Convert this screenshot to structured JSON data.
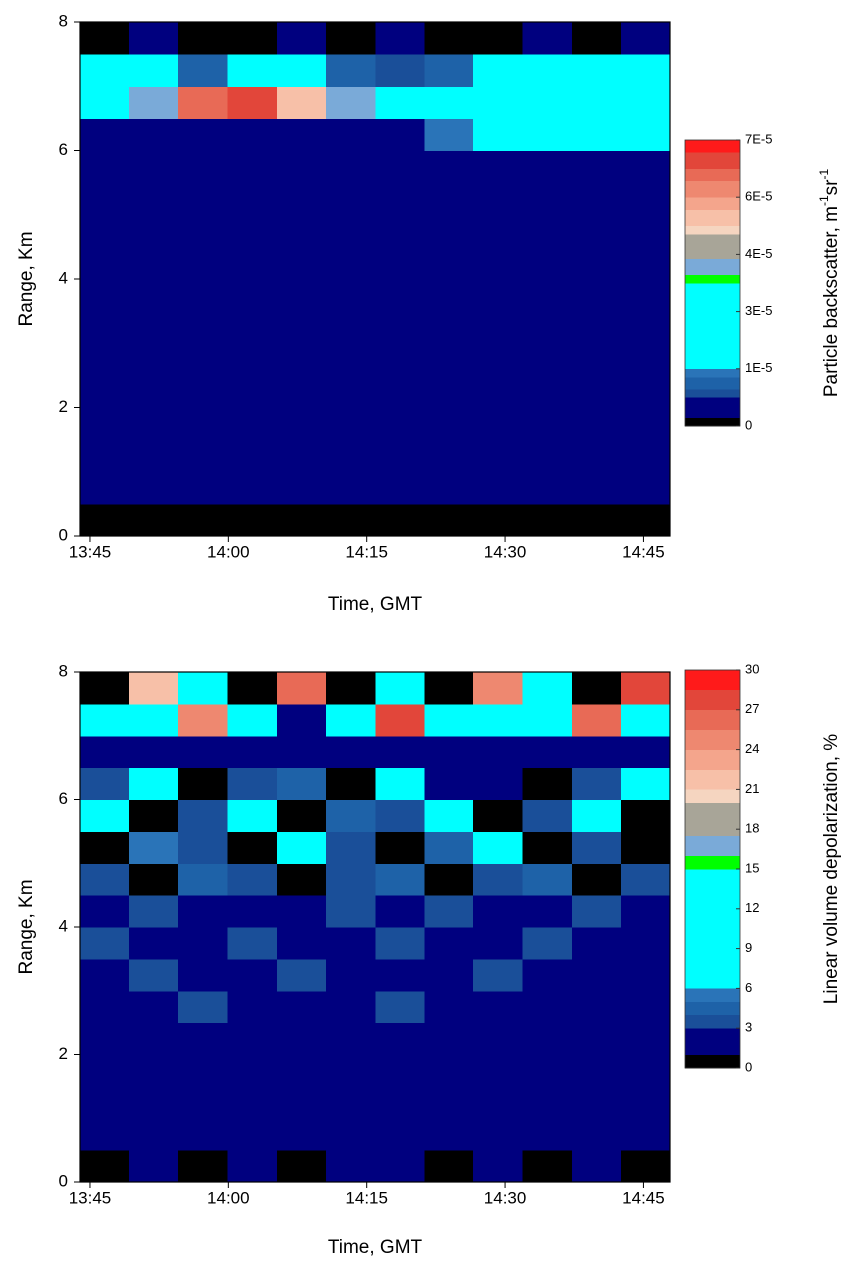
{
  "chart_data": [
    {
      "type": "heatmap",
      "xlabel": "Time, GMT",
      "ylabel": "Range, Km",
      "xlim": [
        13.732,
        14.798
      ],
      "xticks": [
        {
          "value": 13.75,
          "label": "13:45"
        },
        {
          "value": 14,
          "label": "14:00"
        },
        {
          "value": 14.25,
          "label": "14:15"
        },
        {
          "value": 14.5,
          "label": "14:30"
        },
        {
          "value": 14.75,
          "label": "14:45"
        }
      ],
      "ylim": [
        0,
        8
      ],
      "yticks": [
        0,
        2,
        4,
        6,
        8
      ],
      "x": [
        13.776,
        13.865,
        13.954,
        14.043,
        14.132,
        14.221,
        14.31,
        14.398,
        14.487,
        14.576,
        14.665,
        14.754
      ],
      "y": [
        0.25,
        0.75,
        1.25,
        1.75,
        2.25,
        2.75,
        3.25,
        3.75,
        4.25,
        4.75,
        5.25,
        5.75,
        6.25,
        6.75,
        7.25,
        7.75
      ],
      "z": [
        [
          0,
          0,
          0,
          0,
          0,
          0,
          0,
          0,
          0,
          0,
          0,
          0
        ],
        [
          5e-06,
          5e-06,
          5e-06,
          5e-06,
          5e-06,
          5e-06,
          5e-06,
          5e-06,
          5e-06,
          5e-06,
          5e-06,
          5e-06
        ],
        [
          5e-06,
          5e-06,
          5e-06,
          5e-06,
          5e-06,
          5e-06,
          5e-06,
          5e-06,
          5e-06,
          5e-06,
          5e-06,
          5e-06
        ],
        [
          5e-06,
          5e-06,
          5e-06,
          5e-06,
          5e-06,
          5e-06,
          5e-06,
          5e-06,
          5e-06,
          5e-06,
          5e-06,
          5e-06
        ],
        [
          5e-06,
          5e-06,
          5e-06,
          5e-06,
          5e-06,
          5e-06,
          5e-06,
          5e-06,
          5e-06,
          5e-06,
          5e-06,
          5e-06
        ],
        [
          5e-06,
          5e-06,
          5e-06,
          5e-06,
          5e-06,
          5e-06,
          5e-06,
          5e-06,
          5e-06,
          5e-06,
          5e-06,
          5e-06
        ],
        [
          5e-06,
          5e-06,
          5e-06,
          5e-06,
          5e-06,
          5e-06,
          5e-06,
          5e-06,
          5e-06,
          5e-06,
          5e-06,
          5e-06
        ],
        [
          5e-06,
          5e-06,
          5e-06,
          5e-06,
          5e-06,
          5e-06,
          5e-06,
          5e-06,
          5e-06,
          5e-06,
          5e-06,
          5e-06
        ],
        [
          5e-06,
          5e-06,
          5e-06,
          5e-06,
          5e-06,
          5e-06,
          5e-06,
          5e-06,
          5e-06,
          5e-06,
          5e-06,
          5e-06
        ],
        [
          5e-06,
          5e-06,
          5e-06,
          5e-06,
          5e-06,
          5e-06,
          5e-06,
          5e-06,
          5e-06,
          5e-06,
          5e-06,
          5e-06
        ],
        [
          5e-06,
          5e-06,
          5e-06,
          5e-06,
          5e-06,
          5e-06,
          5e-06,
          5e-06,
          5e-06,
          5e-06,
          5e-06,
          5e-06
        ],
        [
          5e-06,
          5e-06,
          5e-06,
          5e-06,
          5e-06,
          5e-06,
          5e-06,
          5e-06,
          5e-06,
          5e-06,
          5e-06,
          5e-06
        ],
        [
          5e-06,
          5e-06,
          5e-06,
          5e-06,
          5e-06,
          5e-06,
          5e-06,
          1.3e-05,
          2e-05,
          2e-05,
          2e-05,
          2e-05
        ],
        [
          3e-05,
          4e-05,
          6.2e-05,
          6.5e-05,
          5e-05,
          4e-05,
          3e-05,
          3e-05,
          2e-05,
          1.5e-05,
          2e-05,
          2.5e-05
        ],
        [
          2e-05,
          2e-05,
          1e-05,
          2e-05,
          2e-05,
          1e-05,
          8e-06,
          1e-05,
          2e-05,
          2e-05,
          1.5e-05,
          2e-05
        ],
        [
          1e-06,
          5e-06,
          1e-06,
          1e-06,
          5e-06,
          1e-06,
          5e-06,
          1e-06,
          1e-06,
          5e-06,
          1e-06,
          5e-06
        ]
      ],
      "levels": [
        0,
        2e-06,
        7e-06,
        9e-06,
        1.2e-05,
        1.4e-05,
        3.5e-05,
        3.7e-05,
        4.1e-05,
        4.7e-05,
        4.9e-05,
        5.3e-05,
        5.6e-05,
        6e-05,
        6.3e-05,
        6.7e-05,
        7e-05
      ],
      "level_colors": [
        "#000000",
        "#00007f",
        "#1a4f99",
        "#1e62a8",
        "#2a74b8",
        "#00ffff",
        "#00ff00",
        "#7aaad8",
        "#a8a598",
        "#f5d5c0",
        "#f7c0a8",
        "#f4a58c",
        "#ee8870",
        "#e86a56",
        "#e2463a",
        "#ff1a1a"
      ],
      "colorbar_label": [
        "Particle backscatter, m",
        "-1",
        "sr",
        "-1"
      ],
      "colorbar_ticks": [
        {
          "value": 0,
          "label": "0"
        },
        {
          "value": 1.4e-05,
          "label": "1E-5"
        },
        {
          "value": 2.8e-05,
          "label": "3E-5"
        },
        {
          "value": 4.2e-05,
          "label": "4E-5"
        },
        {
          "value": 5.6e-05,
          "label": "6E-5"
        },
        {
          "value": 7e-05,
          "label": "7E-5"
        }
      ]
    },
    {
      "type": "heatmap",
      "xlabel": "Time, GMT",
      "ylabel": "Range, Km",
      "xlim": [
        13.732,
        14.798
      ],
      "xticks": [
        {
          "value": 13.75,
          "label": "13:45"
        },
        {
          "value": 14,
          "label": "14:00"
        },
        {
          "value": 14.25,
          "label": "14:15"
        },
        {
          "value": 14.5,
          "label": "14:30"
        },
        {
          "value": 14.75,
          "label": "14:45"
        }
      ],
      "ylim": [
        0,
        8
      ],
      "yticks": [
        0,
        2,
        4,
        6,
        8
      ],
      "x": [
        13.776,
        13.865,
        13.954,
        14.043,
        14.132,
        14.221,
        14.31,
        14.398,
        14.487,
        14.576,
        14.665,
        14.754
      ],
      "y": [
        0.25,
        0.75,
        1.25,
        1.75,
        2.25,
        2.75,
        3.25,
        3.75,
        4.25,
        4.75,
        5.25,
        5.75,
        6.25,
        6.75,
        7.25,
        7.75
      ],
      "z": [
        [
          0.5,
          2,
          0.5,
          2,
          0.5,
          2,
          2,
          0.5,
          2,
          0.5,
          2,
          0.5
        ],
        [
          2,
          2,
          2,
          2,
          2,
          2,
          2,
          2,
          2,
          2,
          2,
          2
        ],
        [
          2,
          2,
          2,
          2,
          2,
          2,
          2,
          2,
          2,
          2,
          2,
          2
        ],
        [
          2,
          2,
          2,
          2,
          2,
          2,
          2,
          2,
          2,
          2,
          2,
          2
        ],
        [
          2,
          2,
          2,
          2,
          2,
          2,
          2,
          2,
          2,
          2,
          2,
          2
        ],
        [
          2,
          2,
          3.5,
          2,
          2,
          2,
          3.5,
          2,
          2,
          2,
          2,
          2
        ],
        [
          2,
          3.5,
          2,
          2,
          3.5,
          2,
          2,
          2,
          3.5,
          2,
          2,
          2
        ],
        [
          3.5,
          2,
          2,
          3.5,
          2,
          2,
          3.5,
          2,
          2,
          3.5,
          2,
          2
        ],
        [
          2,
          3.5,
          2,
          2,
          2,
          3.5,
          2,
          3.5,
          2,
          2,
          3.5,
          2
        ],
        [
          3.5,
          0.5,
          4.5,
          3.5,
          0.5,
          3.5,
          4.5,
          0.5,
          3.5,
          4.5,
          0.5,
          3.5
        ],
        [
          0.5,
          5.5,
          3.5,
          0.5,
          8,
          3.5,
          0.5,
          4.5,
          8,
          0.5,
          3.5,
          0.5
        ],
        [
          8,
          0.5,
          3.5,
          8,
          0.5,
          4.5,
          3.5,
          8,
          0.5,
          3.5,
          8,
          0.5
        ],
        [
          3.5,
          8,
          0.5,
          3.5,
          4.5,
          0.5,
          8,
          2,
          2,
          0.5,
          3.5,
          8
        ],
        [
          2,
          2,
          2,
          2,
          2,
          2,
          2,
          2,
          2,
          2,
          2,
          2
        ],
        [
          10,
          12,
          25,
          10,
          2,
          12,
          28,
          10,
          12,
          10,
          26,
          12
        ],
        [
          0.5,
          22,
          8,
          0.5,
          26,
          0.5,
          10,
          0.5,
          24,
          8,
          0.5,
          28
        ]
      ],
      "levels": [
        0,
        1,
        3,
        4,
        5,
        6,
        15,
        16,
        17.5,
        20,
        21,
        22.5,
        24,
        25.5,
        27,
        28.5,
        30
      ],
      "level_colors": [
        "#000000",
        "#00007f",
        "#1a4f99",
        "#1e62a8",
        "#2a74b8",
        "#00ffff",
        "#00ff00",
        "#7aaad8",
        "#a8a598",
        "#f5d5c0",
        "#f7c0a8",
        "#f4a58c",
        "#ee8870",
        "#e86a56",
        "#e2463a",
        "#ff1a1a"
      ],
      "colorbar_label": [
        "Linear volume depolarization, %"
      ],
      "colorbar_ticks": [
        0,
        3,
        6,
        9,
        12,
        15,
        18,
        21,
        24,
        27,
        30
      ]
    }
  ]
}
